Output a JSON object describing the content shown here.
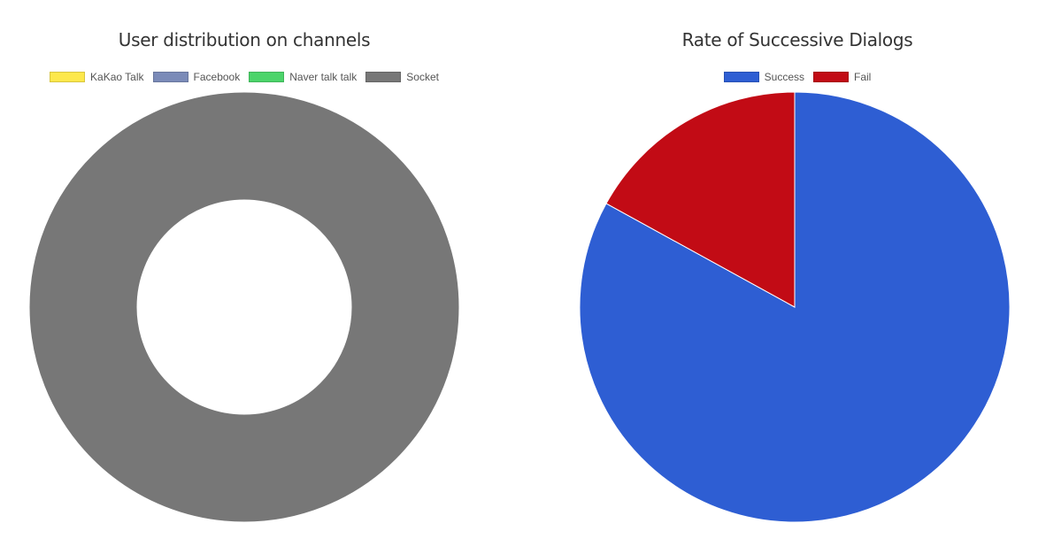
{
  "chart_data": [
    {
      "type": "doughnut",
      "title": "User distribution on channels",
      "legend_position": "top",
      "categories": [
        "KaKao Talk",
        "Facebook",
        "Naver talk talk",
        "Socket"
      ],
      "values": [
        0,
        0,
        0,
        100
      ],
      "colors": [
        "#fde84c",
        "#7b8bb8",
        "#4cd46a",
        "#777777"
      ]
    },
    {
      "type": "pie",
      "title": "Rate of Successive Dialogs",
      "legend_position": "top",
      "categories": [
        "Success",
        "Fail"
      ],
      "values": [
        83,
        17
      ],
      "colors": [
        "#2e5ed3",
        "#c20b15"
      ]
    }
  ]
}
